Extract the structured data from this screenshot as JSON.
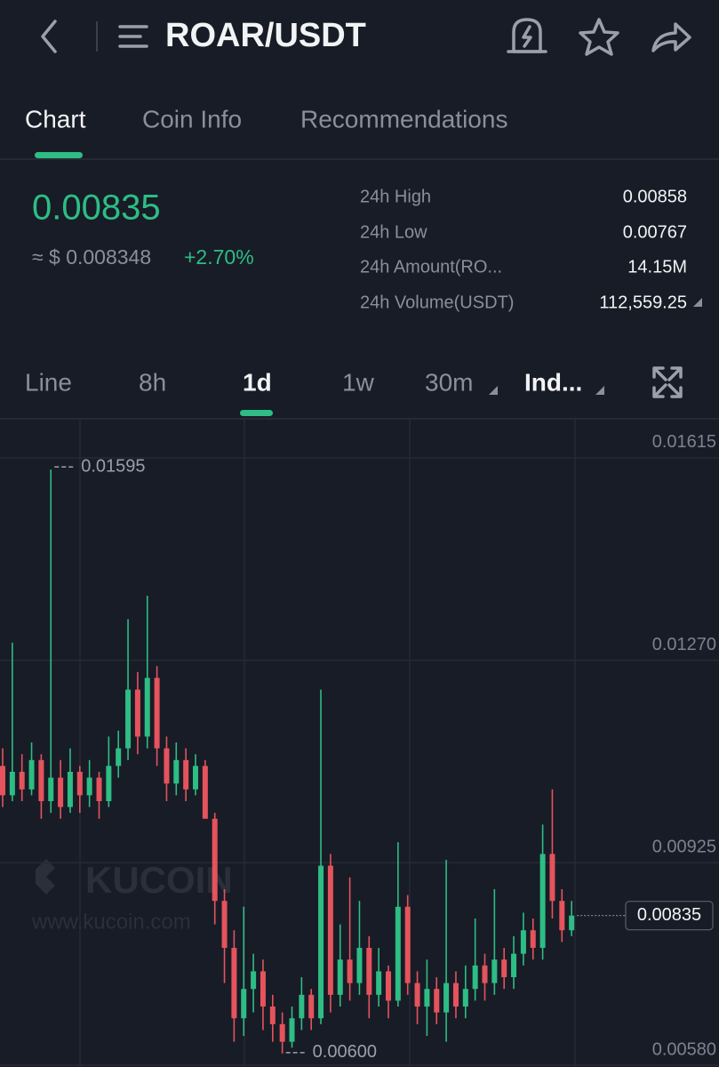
{
  "header": {
    "pair": "ROAR/USDT"
  },
  "tabs": [
    "Chart",
    "Coin Info",
    "Recommendations"
  ],
  "ticker": {
    "price": "0.00835",
    "fiat": "≈ $ 0.008348",
    "change": "+2.70%"
  },
  "stats": [
    {
      "label": "24h High",
      "value": "0.00858"
    },
    {
      "label": "24h Low",
      "value": "0.00767"
    },
    {
      "label": "24h Amount(RO...",
      "value": "14.15M"
    },
    {
      "label": "24h Volume(USDT)",
      "value": "112,559.25"
    }
  ],
  "timeframes": [
    "Line",
    "8h",
    "1d",
    "1w",
    "30m",
    "Ind..."
  ],
  "watermark": {
    "brand": "KUCOIN",
    "url": "www.kucoin.com"
  },
  "chart_data": {
    "type": "candlestick",
    "up_color": "#2dbd85",
    "down_color": "#e5535d",
    "ylim": [
      0.00577,
      0.01683
    ],
    "yticks": [
      {
        "value": 0.01615,
        "label": "0.01615"
      },
      {
        "value": 0.0127,
        "label": "0.01270"
      },
      {
        "value": 0.00925,
        "label": "0.00925"
      },
      {
        "value": 0.0058,
        "label": "0.00580"
      }
    ],
    "grid": true,
    "max_marker": 0.01595,
    "min_marker": {
      "value": 0.006,
      "label": "0.00600"
    },
    "last_price": 0.00835,
    "open": [
      0.0109,
      0.0104,
      0.0108,
      0.0105,
      0.011,
      0.0103,
      0.0107,
      0.0102,
      0.0108,
      0.0104,
      0.0107,
      0.0103,
      0.0109,
      0.0112,
      0.0122,
      0.0114,
      0.0124,
      0.0112,
      0.0106,
      0.011,
      0.0105,
      0.0109,
      0.01,
      0.0086,
      0.0078,
      0.0066,
      0.0071,
      0.0074,
      0.0068,
      0.0065,
      0.0062,
      0.0066,
      0.007,
      0.0066,
      0.0092,
      0.007,
      0.0076,
      0.0072,
      0.0078,
      0.007,
      0.0074,
      0.0069,
      0.0085,
      0.0072,
      0.0068,
      0.0071,
      0.0067,
      0.0072,
      0.0068,
      0.0071,
      0.0075,
      0.0072,
      0.0076,
      0.0073,
      0.0077,
      0.0081,
      0.0078,
      0.0094,
      0.0086,
      0.0081
    ],
    "high": [
      0.0112,
      0.013,
      0.0111,
      0.0113,
      0.0111,
      0.01595,
      0.011,
      0.0112,
      0.0109,
      0.011,
      0.0108,
      0.0114,
      0.0115,
      0.0134,
      0.0125,
      0.0138,
      0.0126,
      0.0114,
      0.0113,
      0.0112,
      0.0111,
      0.011,
      0.0101,
      0.0088,
      0.0081,
      0.0085,
      0.0077,
      0.0076,
      0.007,
      0.0067,
      0.0068,
      0.0073,
      0.0071,
      0.0122,
      0.0094,
      0.0082,
      0.009,
      0.0086,
      0.008,
      0.0078,
      0.0075,
      0.0096,
      0.0087,
      0.0074,
      0.0076,
      0.0073,
      0.0093,
      0.0074,
      0.0075,
      0.0083,
      0.0077,
      0.0088,
      0.0078,
      0.008,
      0.0084,
      0.0083,
      0.0099,
      0.0105,
      0.0088,
      0.0086
    ],
    "low": [
      0.0102,
      0.0103,
      0.0103,
      0.0104,
      0.01,
      0.0101,
      0.01,
      0.0101,
      0.0101,
      0.0102,
      0.01,
      0.0102,
      0.0107,
      0.011,
      0.0111,
      0.0112,
      0.0109,
      0.0103,
      0.0104,
      0.0103,
      0.0104,
      0.0101,
      0.0082,
      0.0072,
      0.0062,
      0.0063,
      0.0067,
      0.0064,
      0.0062,
      0.006,
      0.0061,
      0.0064,
      0.0064,
      0.0065,
      0.0067,
      0.0068,
      0.0069,
      0.007,
      0.0066,
      0.0068,
      0.0066,
      0.0068,
      0.007,
      0.0065,
      0.0063,
      0.0065,
      0.0062,
      0.0066,
      0.0066,
      0.0069,
      0.0069,
      0.007,
      0.0071,
      0.0071,
      0.0075,
      0.0076,
      0.0076,
      0.0083,
      0.0079,
      0.008
    ],
    "close": [
      0.0104,
      0.0108,
      0.0105,
      0.011,
      0.0103,
      0.0107,
      0.0102,
      0.0108,
      0.0104,
      0.0107,
      0.0103,
      0.0109,
      0.0112,
      0.0122,
      0.0114,
      0.0124,
      0.0112,
      0.0106,
      0.011,
      0.0105,
      0.0109,
      0.01,
      0.0086,
      0.0078,
      0.0066,
      0.0071,
      0.0074,
      0.0068,
      0.0065,
      0.0062,
      0.0066,
      0.007,
      0.0066,
      0.0092,
      0.007,
      0.0076,
      0.0072,
      0.0078,
      0.007,
      0.0074,
      0.0069,
      0.0085,
      0.0072,
      0.0068,
      0.0071,
      0.0067,
      0.0072,
      0.0068,
      0.0071,
      0.0075,
      0.0072,
      0.0076,
      0.0073,
      0.0077,
      0.0081,
      0.0078,
      0.0094,
      0.0086,
      0.0081,
      0.00835
    ]
  }
}
